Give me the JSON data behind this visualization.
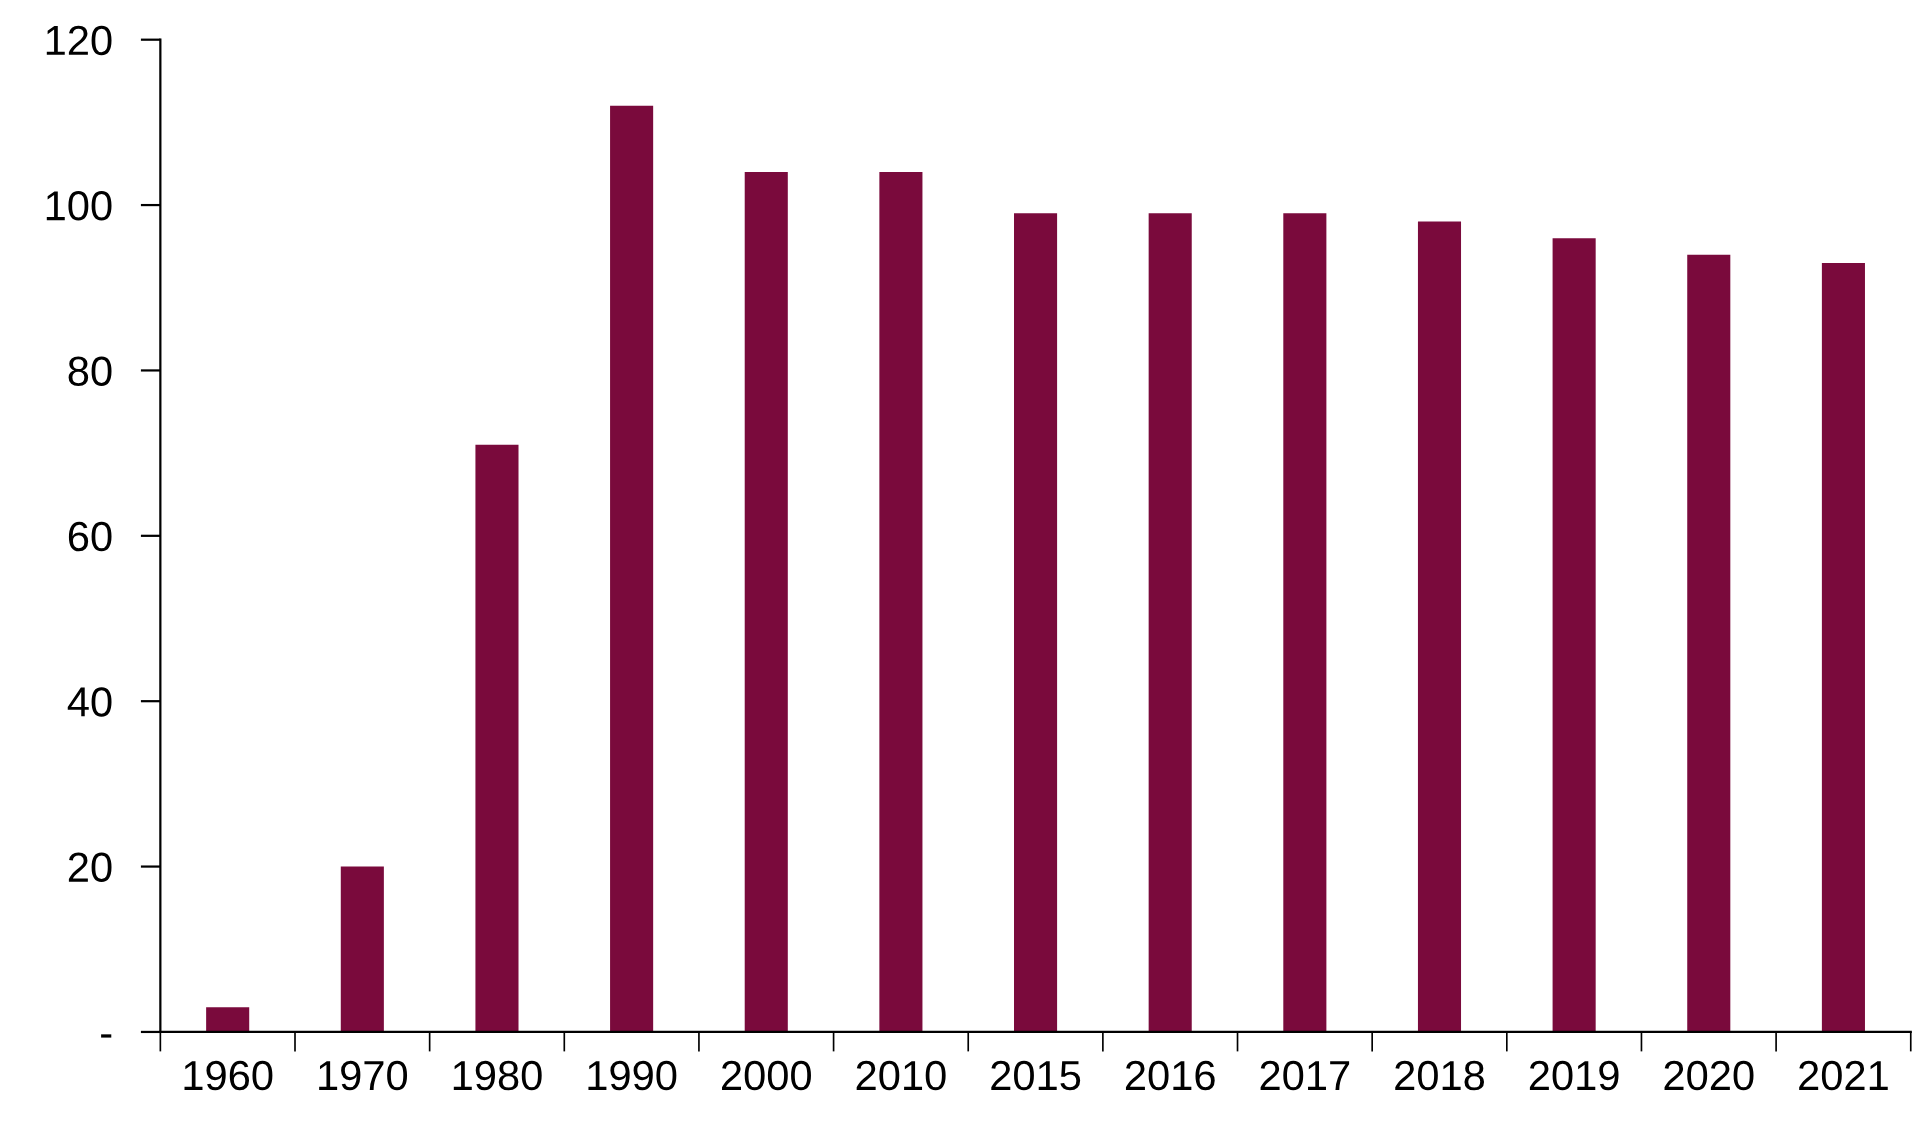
{
  "chart_data": {
    "type": "bar",
    "categories": [
      "1960",
      "1970",
      "1980",
      "1990",
      "2000",
      "2010",
      "2015",
      "2016",
      "2017",
      "2018",
      "2019",
      "2020",
      "2021"
    ],
    "values": [
      3,
      20,
      71,
      112,
      104,
      104,
      99,
      99,
      99,
      98,
      96,
      94,
      93
    ],
    "color": "#7a0a3c",
    "ylim": [
      0,
      120
    ],
    "yticks": [
      {
        "value": 0,
        "label": "-"
      },
      20,
      40,
      60,
      80,
      100,
      120
    ],
    "grid": false,
    "legend": false
  }
}
